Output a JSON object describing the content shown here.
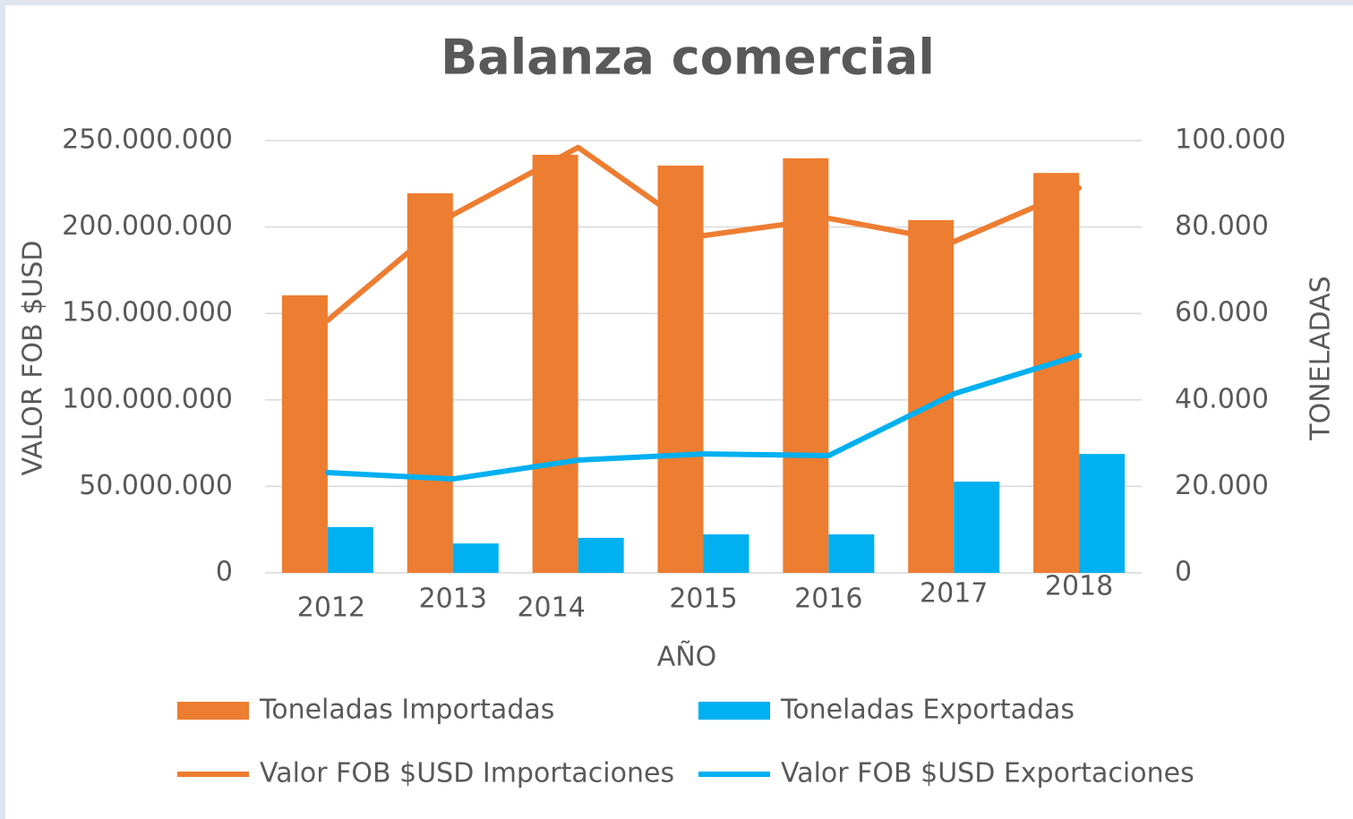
{
  "chart_data": {
    "type": "combo",
    "title": "Balanza comercial",
    "x_label": "AÑO",
    "y_label": "VALOR FOB $USD",
    "y2_label": "TONELADAS",
    "categories": [
      "2012",
      "2013",
      "2014",
      "2015",
      "2016",
      "2017",
      "2018"
    ],
    "series": [
      {
        "name": "Toneladas Importadas",
        "type": "bar",
        "axis": "y2",
        "color": "#ed7d31",
        "values": [
          64200,
          87800,
          96700,
          94200,
          95900,
          81600,
          92500
        ]
      },
      {
        "name": "Toneladas Exportadas",
        "type": "bar",
        "axis": "y2",
        "color": "#00b0f0",
        "values": [
          10600,
          6800,
          8100,
          8900,
          8900,
          21100,
          27500
        ]
      },
      {
        "name": "Valor FOB $USD Importaciones",
        "type": "line",
        "axis": "y",
        "color": "#ed7d31",
        "values": [
          146000000,
          207000000,
          246000000,
          195000000,
          205000000,
          191500000,
          222600000
        ]
      },
      {
        "name": "Valor FOB $USD Exportaciones",
        "type": "line",
        "axis": "y",
        "color": "#00b0f0",
        "values": [
          58000000,
          54300000,
          65200000,
          68800000,
          67800000,
          103500000,
          125800000
        ]
      }
    ],
    "ylim": [
      0,
      250000000
    ],
    "yticks": [
      0,
      {
        "value": 50000000,
        "label": "50.000.000"
      },
      {
        "value": 100000000,
        "label": "100.000.000"
      },
      {
        "value": 150000000,
        "label": "150.000.000"
      },
      {
        "value": 200000000,
        "label": "200.000.000"
      },
      {
        "value": 250000000,
        "label": "250.000.000"
      }
    ],
    "y2lim": [
      0,
      100000
    ],
    "y2ticks": [
      0,
      {
        "value": 20000,
        "label": "20.000"
      },
      {
        "value": 40000,
        "label": "40.000"
      },
      {
        "value": 60000,
        "label": "60.000"
      },
      {
        "value": 80000,
        "label": "80.000"
      },
      {
        "value": 100000,
        "label": "100.000"
      }
    ],
    "grid": true,
    "legend": "bottom"
  }
}
